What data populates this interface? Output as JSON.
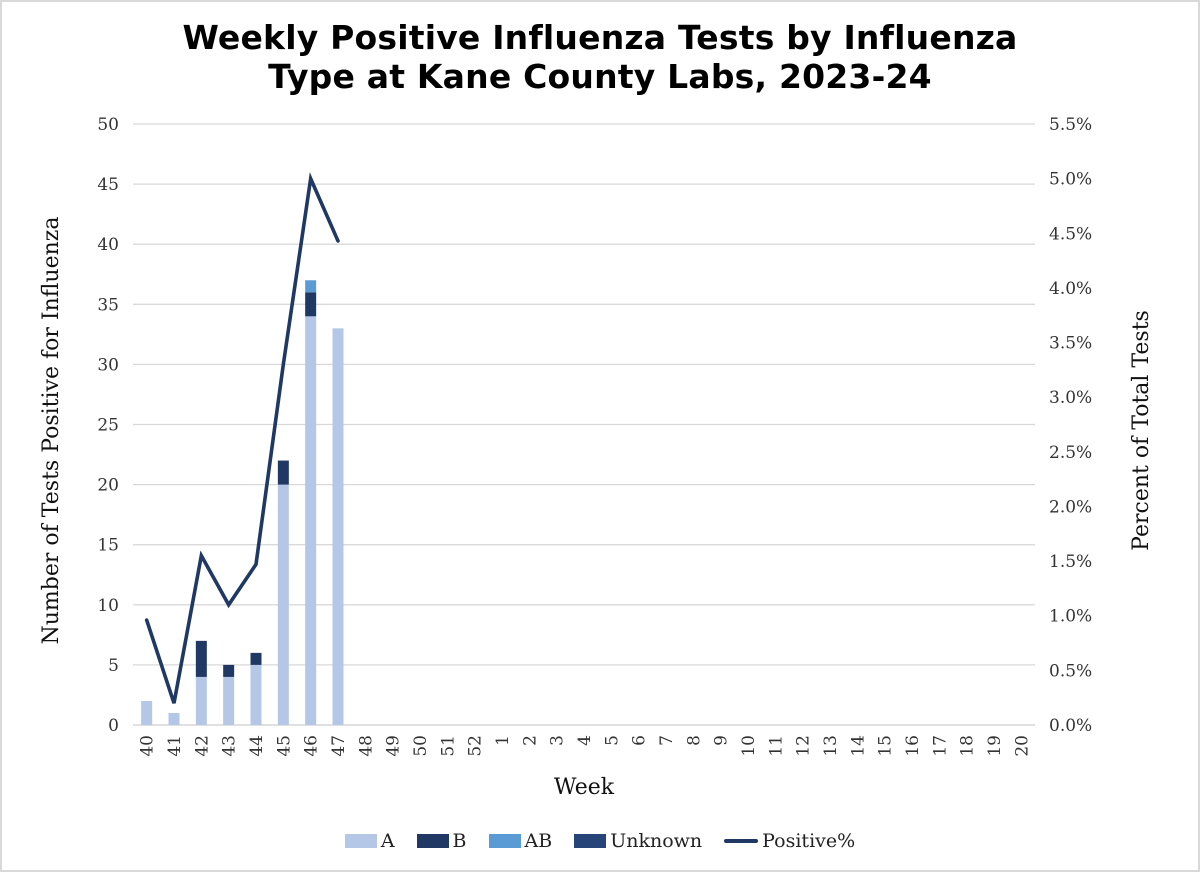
{
  "title": {
    "line1": "Weekly Positive Influenza Tests by Influenza",
    "line2": "Type at Kane County Labs, 2023-24"
  },
  "axes": {
    "x_label": "Week",
    "y_left_label": "Number of Tests Positive for Influenza",
    "y_right_label": "Percent of Total Tests",
    "y_left_ticks": [
      "0",
      "5",
      "10",
      "15",
      "20",
      "25",
      "30",
      "35",
      "40",
      "45",
      "50"
    ],
    "y_right_ticks": [
      "0.0%",
      "0.5%",
      "1.0%",
      "1.5%",
      "2.0%",
      "2.5%",
      "3.0%",
      "3.5%",
      "4.0%",
      "4.5%",
      "5.0%",
      "5.5%"
    ]
  },
  "legend": [
    {
      "label": "A",
      "type": "bar",
      "color": "#b4c7e7"
    },
    {
      "label": "B",
      "type": "bar",
      "color": "#203864"
    },
    {
      "label": "AB",
      "type": "bar",
      "color": "#5b9bd5"
    },
    {
      "label": "Unknown",
      "type": "bar",
      "color": "#264478"
    },
    {
      "label": "Positive%",
      "type": "line",
      "color": "#1f3864"
    }
  ],
  "chart_data": {
    "type": "bar",
    "subtype": "stacked bar with line on secondary axis",
    "title": "Weekly Positive Influenza Tests by Influenza Type at Kane County Labs, 2023-24",
    "xlabel": "Week",
    "ylabel": "Number of Tests Positive for Influenza",
    "y2label": "Percent of Total Tests",
    "ylim": [
      0,
      50
    ],
    "y2lim": [
      0,
      5.5
    ],
    "grid": true,
    "legend_position": "bottom",
    "categories": [
      "40",
      "41",
      "42",
      "43",
      "44",
      "45",
      "46",
      "47",
      "48",
      "49",
      "50",
      "51",
      "52",
      "1",
      "2",
      "3",
      "4",
      "5",
      "6",
      "7",
      "8",
      "9",
      "10",
      "11",
      "12",
      "13",
      "14",
      "15",
      "16",
      "17",
      "18",
      "19",
      "20"
    ],
    "series": [
      {
        "name": "A",
        "type": "bar",
        "color": "#b4c7e7",
        "values": [
          2,
          1,
          4,
          4,
          5,
          20,
          34,
          33,
          null,
          null,
          null,
          null,
          null,
          null,
          null,
          null,
          null,
          null,
          null,
          null,
          null,
          null,
          null,
          null,
          null,
          null,
          null,
          null,
          null,
          null,
          null,
          null,
          null
        ]
      },
      {
        "name": "B",
        "type": "bar",
        "color": "#203864",
        "values": [
          0,
          0,
          3,
          1,
          1,
          2,
          2,
          0,
          null,
          null,
          null,
          null,
          null,
          null,
          null,
          null,
          null,
          null,
          null,
          null,
          null,
          null,
          null,
          null,
          null,
          null,
          null,
          null,
          null,
          null,
          null,
          null,
          null
        ]
      },
      {
        "name": "AB",
        "type": "bar",
        "color": "#5b9bd5",
        "values": [
          0,
          0,
          0,
          0,
          0,
          0,
          1,
          0,
          null,
          null,
          null,
          null,
          null,
          null,
          null,
          null,
          null,
          null,
          null,
          null,
          null,
          null,
          null,
          null,
          null,
          null,
          null,
          null,
          null,
          null,
          null,
          null,
          null
        ]
      },
      {
        "name": "Unknown",
        "type": "bar",
        "color": "#264478",
        "values": [
          0,
          0,
          0,
          0,
          0,
          0,
          0,
          0,
          null,
          null,
          null,
          null,
          null,
          null,
          null,
          null,
          null,
          null,
          null,
          null,
          null,
          null,
          null,
          null,
          null,
          null,
          null,
          null,
          null,
          null,
          null,
          null,
          null
        ]
      },
      {
        "name": "Positive%",
        "type": "line",
        "axis": "right",
        "color": "#1f3864",
        "values": [
          0.96,
          0.2,
          1.55,
          1.1,
          1.47,
          3.3,
          5.0,
          4.43,
          null,
          null,
          null,
          null,
          null,
          null,
          null,
          null,
          null,
          null,
          null,
          null,
          null,
          null,
          null,
          null,
          null,
          null,
          null,
          null,
          null,
          null,
          null,
          null,
          null
        ]
      }
    ]
  }
}
